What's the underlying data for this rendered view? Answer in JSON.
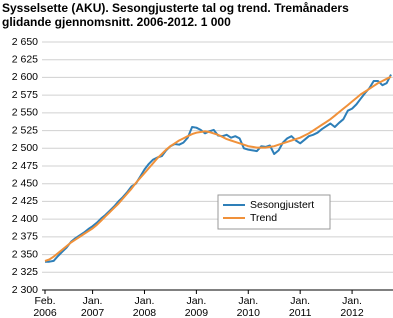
{
  "chart_data": {
    "type": "line",
    "title": "Sysselsette (AKU).  Sesongjusterte tal og trend. Tremånaders glidande gjennomsnitt. 2006-2012. 1 000",
    "categories": [
      "Feb.\n2006",
      null,
      null,
      null,
      null,
      null,
      null,
      null,
      null,
      null,
      null,
      "Jan.\n2007",
      null,
      null,
      null,
      null,
      null,
      null,
      null,
      null,
      null,
      null,
      null,
      "Jan.\n2008",
      null,
      null,
      null,
      null,
      null,
      null,
      null,
      null,
      null,
      null,
      null,
      "Jan.\n2009",
      null,
      null,
      null,
      null,
      null,
      null,
      null,
      null,
      null,
      null,
      null,
      "Jan.\n2010",
      null,
      null,
      null,
      null,
      null,
      null,
      null,
      null,
      null,
      null,
      null,
      "Jan.\n2011",
      null,
      null,
      null,
      null,
      null,
      null,
      null,
      null,
      null,
      null,
      null,
      "Jan.\n2012",
      null,
      null,
      null,
      null,
      null,
      null,
      null,
      null,
      null
    ],
    "series": [
      {
        "name": "Sesongjustert",
        "color": "#2e7fb8",
        "values": [
          2340,
          2340,
          2341,
          2348,
          2354,
          2360,
          2368,
          2373,
          2377,
          2381,
          2386,
          2390,
          2395,
          2401,
          2406,
          2412,
          2418,
          2425,
          2431,
          2438,
          2446,
          2450,
          2460,
          2470,
          2478,
          2484,
          2487,
          2489,
          2497,
          2503,
          2506,
          2505,
          2508,
          2515,
          2530,
          2529,
          2526,
          2521,
          2524,
          2526,
          2518,
          2517,
          2519,
          2515,
          2517,
          2514,
          2500,
          2498,
          2497,
          2496,
          2503,
          2502,
          2504,
          2492,
          2497,
          2508,
          2514,
          2517,
          2511,
          2507,
          2512,
          2517,
          2519,
          2522,
          2527,
          2531,
          2535,
          2530,
          2536,
          2541,
          2553,
          2556,
          2562,
          2570,
          2578,
          2585,
          2595,
          2595,
          2589,
          2592,
          2604
        ]
      },
      {
        "name": "Trend",
        "color": "#f0913a",
        "values": [
          2341,
          2343,
          2347,
          2352,
          2357,
          2362,
          2367,
          2371,
          2375,
          2379,
          2383,
          2387,
          2392,
          2398,
          2404,
          2410,
          2416,
          2422,
          2429,
          2436,
          2443,
          2451,
          2458,
          2465,
          2472,
          2479,
          2486,
          2492,
          2498,
          2503,
          2507,
          2511,
          2514,
          2517,
          2520,
          2522,
          2523,
          2524,
          2523,
          2521,
          2519,
          2516,
          2513,
          2511,
          2509,
          2507,
          2505,
          2503,
          2502,
          2501,
          2501,
          2501,
          2502,
          2503,
          2505,
          2507,
          2509,
          2511,
          2513,
          2515,
          2518,
          2521,
          2525,
          2529,
          2533,
          2537,
          2541,
          2546,
          2551,
          2556,
          2561,
          2566,
          2571,
          2576,
          2580,
          2584,
          2588,
          2592,
          2595,
          2598,
          2601
        ]
      }
    ],
    "ylim": [
      2300,
      2650
    ],
    "yticks": [
      {
        "value": 2300,
        "label": "2 300"
      },
      {
        "value": 2325,
        "label": "2 325"
      },
      {
        "value": 2350,
        "label": "2 350"
      },
      {
        "value": 2375,
        "label": "2 375"
      },
      {
        "value": 2400,
        "label": "2 400"
      },
      {
        "value": 2425,
        "label": "2 425"
      },
      {
        "value": 2450,
        "label": "2 450"
      },
      {
        "value": 2475,
        "label": "2 475"
      },
      {
        "value": 2500,
        "label": "2 500"
      },
      {
        "value": 2525,
        "label": "2 525"
      },
      {
        "value": 2550,
        "label": "2 550"
      },
      {
        "value": 2575,
        "label": "2 575"
      },
      {
        "value": 2600,
        "label": "2 600"
      },
      {
        "value": 2625,
        "label": "2 625"
      },
      {
        "value": 2650,
        "label": "2 650"
      }
    ],
    "grid": true,
    "legend": "center right"
  }
}
